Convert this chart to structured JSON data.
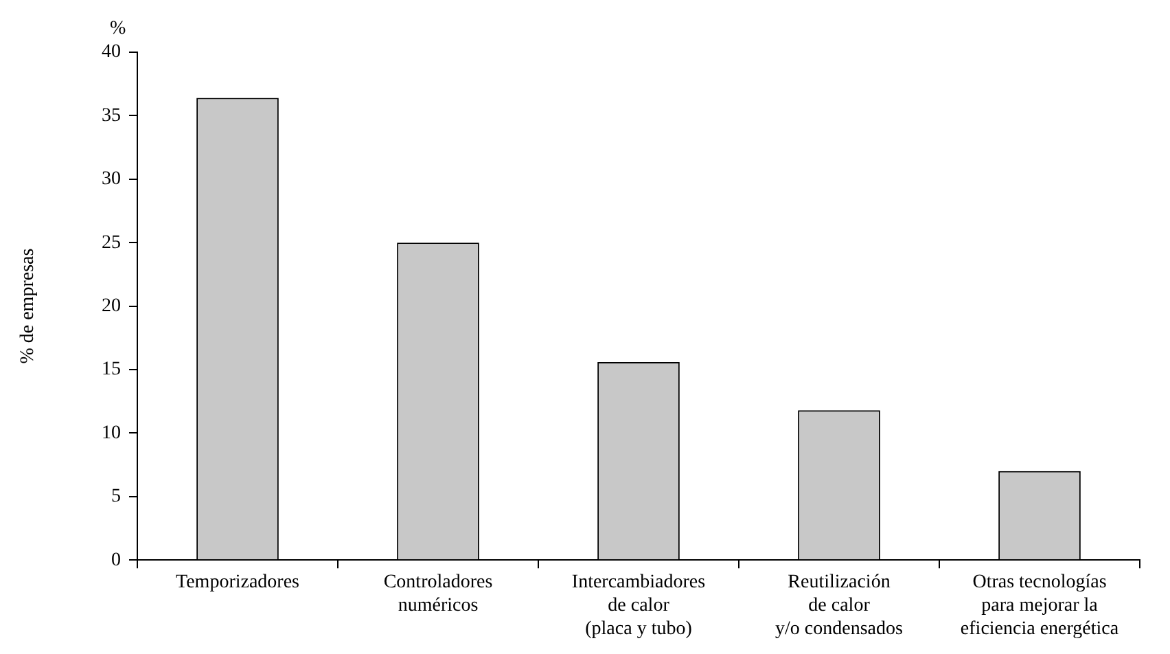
{
  "chart_data": {
    "type": "bar",
    "ylabel": "% de empresas",
    "annotations": [
      "%"
    ],
    "categories": [
      "Temporizadores",
      "Controladores\nnuméricos",
      "Intercambiadores\nde calor\n(placa y tubo)",
      "Reutilización\nde calor\ny/o condensados",
      "Otras tecnologías\npara mejorar la\neficiencia energética"
    ],
    "values": [
      36.4,
      25,
      15.6,
      11.8,
      7
    ],
    "color": "#c8c8c8",
    "ylim": [
      0,
      40
    ],
    "yticks": [
      0,
      5,
      10,
      15,
      20,
      25,
      30,
      35,
      40
    ],
    "grid": false,
    "legend": false
  }
}
